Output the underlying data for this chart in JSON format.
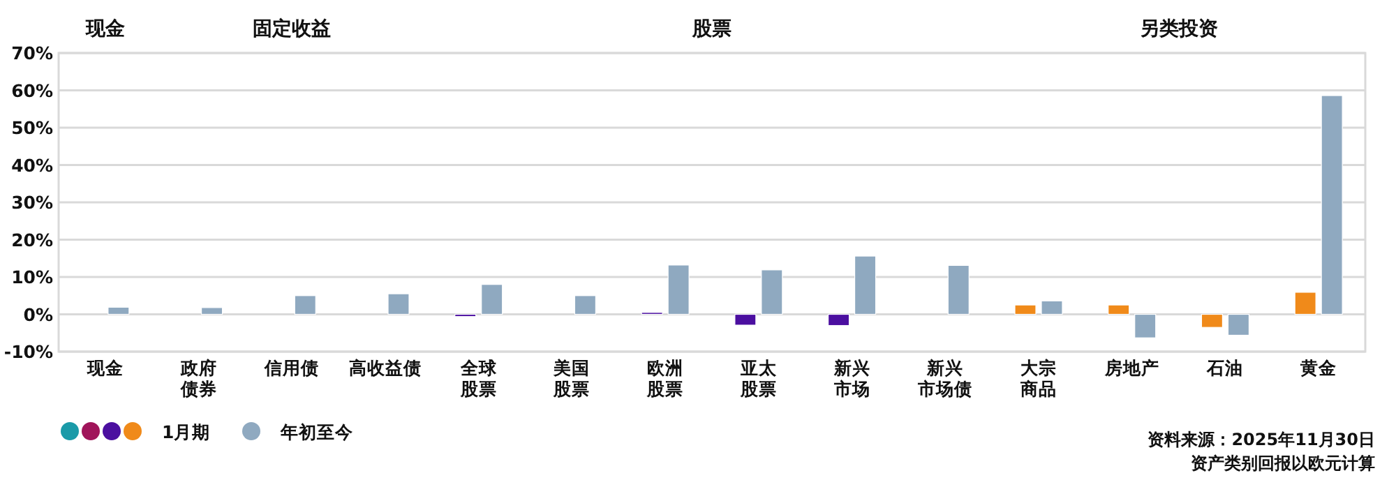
{
  "chart_data": {
    "type": "bar",
    "categories": [
      "现金",
      "政府债券",
      "信用债",
      "高收益债",
      "全球股票",
      "美国股票",
      "欧洲股票",
      "亚太股票",
      "新兴市场",
      "新兴市场债",
      "大宗商品",
      "房地产",
      "石油",
      "黄金"
    ],
    "series": [
      {
        "name": "1月期",
        "colors": [
          "#1a9aa8",
          "#a0145a",
          "#a0145a",
          "#a0145a",
          "#4b0fa0",
          "#4b0fa0",
          "#4b0fa0",
          "#4b0fa0",
          "#4b0fa0",
          "#4b0fa0",
          "#f08a1a",
          "#f08a1a",
          "#f08a1a",
          "#f08a1a"
        ],
        "values": [
          0,
          0,
          0,
          0,
          -0.6,
          0,
          0.5,
          -2.9,
          -3.0,
          0,
          2.5,
          2.5,
          -3.5,
          5.9
        ]
      },
      {
        "name": "年初至今",
        "color": "#8fa9c0",
        "values": [
          1.9,
          1.8,
          5.0,
          5.5,
          8.0,
          5.0,
          13.2,
          11.9,
          15.6,
          13.1,
          3.6,
          -6.3,
          -5.6,
          58.6
        ]
      }
    ],
    "ylim": [
      -10,
      70
    ],
    "yticks": [
      {
        "value": -10,
        "label": "-10%"
      },
      {
        "value": 0,
        "label": "0%"
      },
      {
        "value": 10,
        "label": "10%"
      },
      {
        "value": 20,
        "label": "20%"
      },
      {
        "value": 30,
        "label": "30%"
      },
      {
        "value": 40,
        "label": "40%"
      },
      {
        "value": 50,
        "label": "50%"
      },
      {
        "value": 60,
        "label": "60%"
      },
      {
        "value": 70,
        "label": "70%"
      }
    ],
    "grid": "y",
    "legend": "bottom left",
    "annotations": [
      "现金",
      "固定收益",
      "股票",
      "另类投资",
      "资料来源：2025年11月30日",
      "资产类别回报以欧元计算"
    ]
  }
}
